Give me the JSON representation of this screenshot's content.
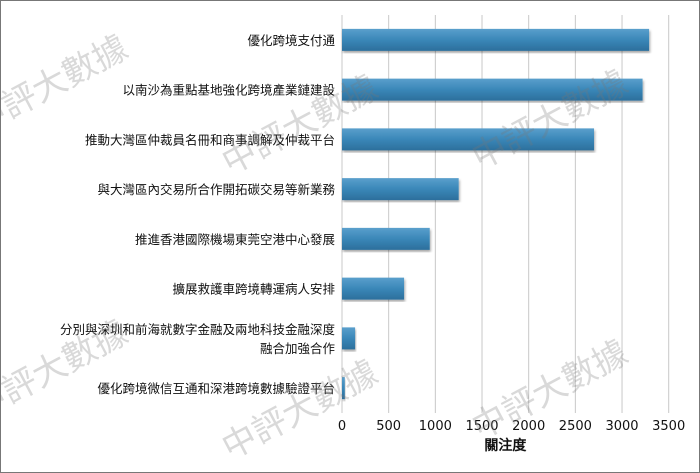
{
  "chart_data": {
    "type": "bar",
    "orientation": "horizontal",
    "categories": [
      [
        "優化跨境支付通"
      ],
      [
        "以南沙為重點基地強化跨境產業鏈建設"
      ],
      [
        "推動大灣區仲裁員名冊和商事調解及仲裁平台"
      ],
      [
        "與大灣區內交易所合作開拓碳交易等新業務"
      ],
      [
        "推進香港國際機場東莞空港中心發展"
      ],
      [
        "擴展救護車跨境轉運病人安排"
      ],
      [
        "分別與深圳和前海就數字金融及兩地科技金融深度",
        "融合加強合作"
      ],
      [
        "優化跨境微信互通和深港跨境數據驗證平台"
      ]
    ],
    "values": [
      3290,
      3220,
      2700,
      1250,
      940,
      665,
      140,
      30
    ],
    "xlabel": "關注度",
    "ylabel": "",
    "xlim": [
      0,
      3500
    ],
    "xticks": [
      "0",
      "500",
      "1000",
      "1500",
      "2000",
      "2500",
      "3000",
      "3500"
    ],
    "grid": "vertical",
    "bar_color": "#3a87b8",
    "watermark": "中評大數據"
  }
}
